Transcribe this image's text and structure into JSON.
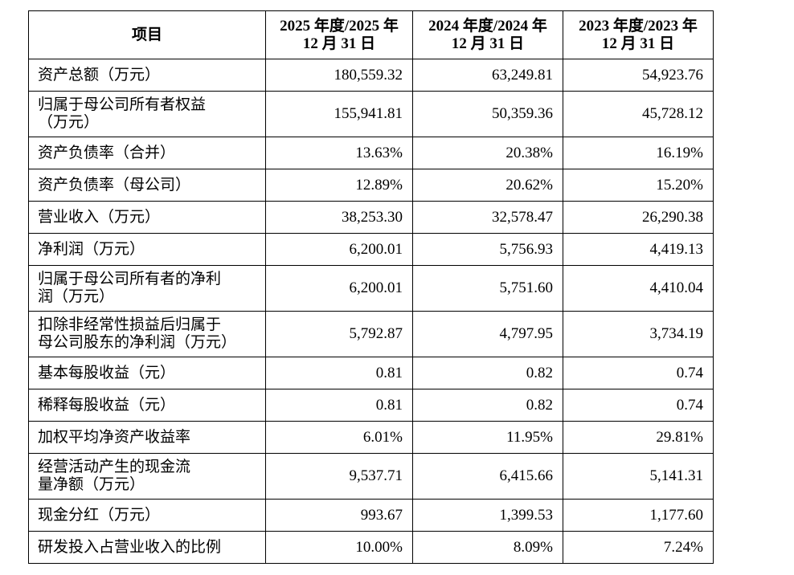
{
  "table": {
    "header": [
      "项目",
      "2025 年度/2025 年\n12 月 31 日",
      "2024 年度/2024 年\n12 月 31 日",
      "2023 年度/2023 年\n12 月 31 日"
    ],
    "rows": [
      [
        "资产总额（万元）",
        "180,559.32",
        "63,249.81",
        "54,923.76"
      ],
      [
        "归属于母公司所有者权益\n（万元）",
        "155,941.81",
        "50,359.36",
        "45,728.12"
      ],
      [
        "资产负债率（合并）",
        "13.63%",
        "20.38%",
        "16.19%"
      ],
      [
        "资产负债率（母公司）",
        "12.89%",
        "20.62%",
        "15.20%"
      ],
      [
        "营业收入（万元）",
        "38,253.30",
        "32,578.47",
        "26,290.38"
      ],
      [
        "净利润（万元）",
        "6,200.01",
        "5,756.93",
        "4,419.13"
      ],
      [
        "归属于母公司所有者的净利\n润（万元）",
        "6,200.01",
        "5,751.60",
        "4,410.04"
      ],
      [
        "扣除非经常性损益后归属于\n母公司股东的净利润（万元）",
        "5,792.87",
        "4,797.95",
        "3,734.19"
      ],
      [
        "基本每股收益（元）",
        "0.81",
        "0.82",
        "0.74"
      ],
      [
        "稀释每股收益（元）",
        "0.81",
        "0.82",
        "0.74"
      ],
      [
        "加权平均净资产收益率",
        "6.01%",
        "11.95%",
        "29.81%"
      ],
      [
        "经营活动产生的现金流\n量净额（万元）",
        "9,537.71",
        "6,415.66",
        "5,141.31"
      ],
      [
        "现金分红（万元）",
        "993.67",
        "1,399.53",
        "1,177.60"
      ],
      [
        "研发投入占营业收入的比例",
        "10.00%",
        "8.09%",
        "7.24%"
      ]
    ]
  }
}
